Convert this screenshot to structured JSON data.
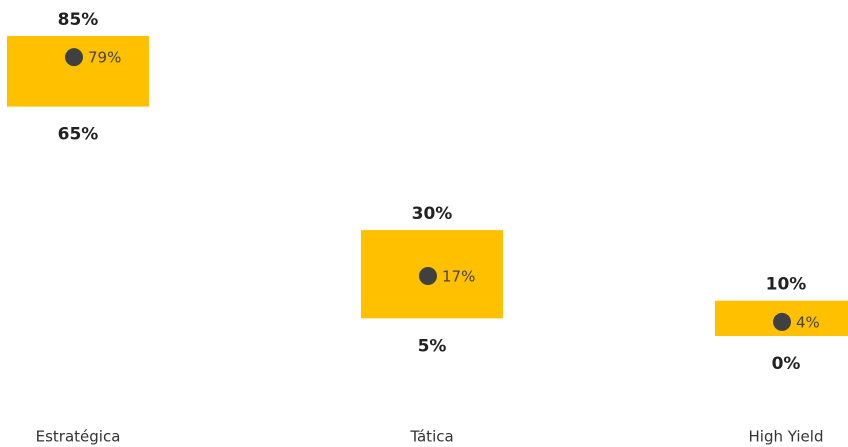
{
  "chart_data": {
    "type": "range",
    "categories": [
      "Estratégica",
      "Tática",
      "High Yield"
    ],
    "high": [
      85,
      30,
      10
    ],
    "high_labels": [
      "85%",
      "30%",
      "10%"
    ],
    "low": [
      65,
      5,
      0
    ],
    "low_labels": [
      "65%",
      "5%",
      "0%"
    ],
    "values": [
      79,
      17,
      4
    ],
    "value_labels": [
      "79%",
      "17%",
      "4%"
    ],
    "color": "#ffc000",
    "dot_color": "#404040"
  }
}
